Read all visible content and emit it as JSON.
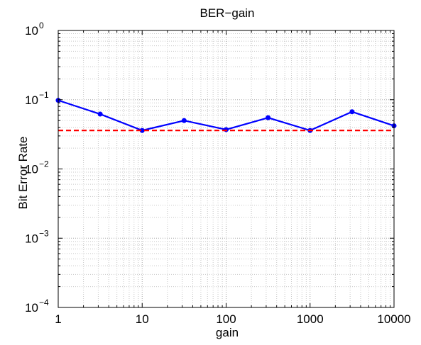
{
  "chart_data": {
    "type": "line",
    "title": "BER−gain",
    "xlabel": "gain",
    "ylabel": "Bit Error Rate",
    "x_scale": "log",
    "y_scale": "log",
    "xlim": [
      1,
      10000
    ],
    "ylim": [
      0.0001,
      1
    ],
    "grid": true,
    "x_tick_values": [
      1,
      10,
      100,
      1000,
      10000
    ],
    "x_tick_labels": [
      "1",
      "10",
      "100",
      "1000",
      "10000"
    ],
    "y_tick_values": [
      0.0001,
      0.001,
      0.01,
      0.1,
      1
    ],
    "y_tick_labels": [
      {
        "base": "10",
        "exp": "−4"
      },
      {
        "base": "10",
        "exp": "−3"
      },
      {
        "base": "10",
        "exp": "−2"
      },
      {
        "base": "10",
        "exp": "−1"
      },
      {
        "base": "10",
        "exp": "0"
      }
    ],
    "series": [
      {
        "color": "#0000ff",
        "style": "solid",
        "marker": "dot",
        "x": [
          1,
          3.16,
          10,
          31.6,
          100,
          316,
          1000,
          3162,
          10000
        ],
        "y": [
          0.098,
          0.062,
          0.036,
          0.05,
          0.037,
          0.055,
          0.036,
          0.067,
          0.042
        ]
      },
      {
        "color": "#ff0000",
        "style": "dashed",
        "marker": "none",
        "x": [
          1,
          10000
        ],
        "y": [
          0.036,
          0.036
        ]
      }
    ]
  }
}
